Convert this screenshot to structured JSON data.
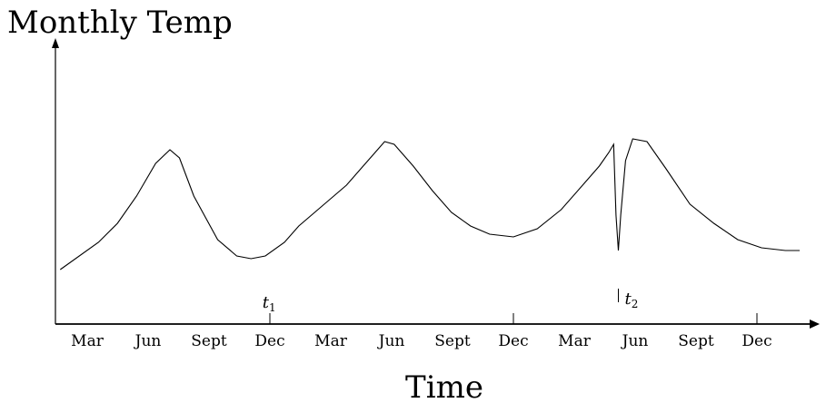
{
  "chart_data": {
    "type": "line",
    "title": "",
    "ylabel": "Monthly Temp",
    "xlabel": "Time",
    "x_tick_labels": [
      "Mar",
      "Jun",
      "Sept",
      "Dec",
      "Mar",
      "Jun",
      "Sept",
      "Dec",
      "Mar",
      "Jun",
      "Sept",
      "Dec"
    ],
    "major_ticks": [
      "Dec",
      "Dec",
      "Dec"
    ],
    "y_ticks": false,
    "grid": false,
    "series": [
      {
        "values": [
          [
            0.0,
            0.2
          ],
          [
            0.8,
            0.3
          ],
          [
            1.2,
            0.37
          ],
          [
            1.6,
            0.47
          ],
          [
            2.0,
            0.59
          ],
          [
            2.3,
            0.64
          ],
          [
            2.5,
            0.61
          ],
          [
            2.8,
            0.47
          ],
          [
            3.3,
            0.31
          ],
          [
            3.7,
            0.25
          ],
          [
            4.0,
            0.24
          ],
          [
            4.3,
            0.25
          ],
          [
            4.7,
            0.3
          ],
          [
            5.0,
            0.36
          ],
          [
            5.6,
            0.45
          ],
          [
            6.0,
            0.51
          ],
          [
            6.3,
            0.57
          ],
          [
            6.6,
            0.63
          ],
          [
            6.8,
            0.67
          ],
          [
            7.0,
            0.66
          ],
          [
            7.4,
            0.58
          ],
          [
            7.8,
            0.49
          ],
          [
            8.2,
            0.41
          ],
          [
            8.6,
            0.36
          ],
          [
            9.0,
            0.33
          ],
          [
            9.5,
            0.32
          ],
          [
            10.0,
            0.35
          ],
          [
            10.5,
            0.42
          ],
          [
            11.0,
            0.52
          ],
          [
            11.3,
            0.58
          ],
          [
            11.5,
            0.63
          ],
          [
            11.6,
            0.66
          ],
          [
            11.65,
            0.4
          ],
          [
            11.7,
            0.27
          ],
          [
            11.75,
            0.4
          ],
          [
            11.85,
            0.6
          ],
          [
            12.0,
            0.68
          ],
          [
            12.3,
            0.67
          ],
          [
            12.7,
            0.57
          ],
          [
            13.2,
            0.44
          ],
          [
            13.7,
            0.37
          ],
          [
            14.2,
            0.31
          ],
          [
            14.7,
            0.28
          ],
          [
            15.2,
            0.27
          ],
          [
            15.5,
            0.27
          ]
        ]
      }
    ],
    "annotations": [
      {
        "label": "t",
        "subscript": "1",
        "x": 4.2
      },
      {
        "label": "t",
        "subscript": "2",
        "x": 11.7
      }
    ],
    "x_range": [
      -0.1,
      15.5
    ],
    "y_range": [
      0,
      1.0
    ]
  }
}
